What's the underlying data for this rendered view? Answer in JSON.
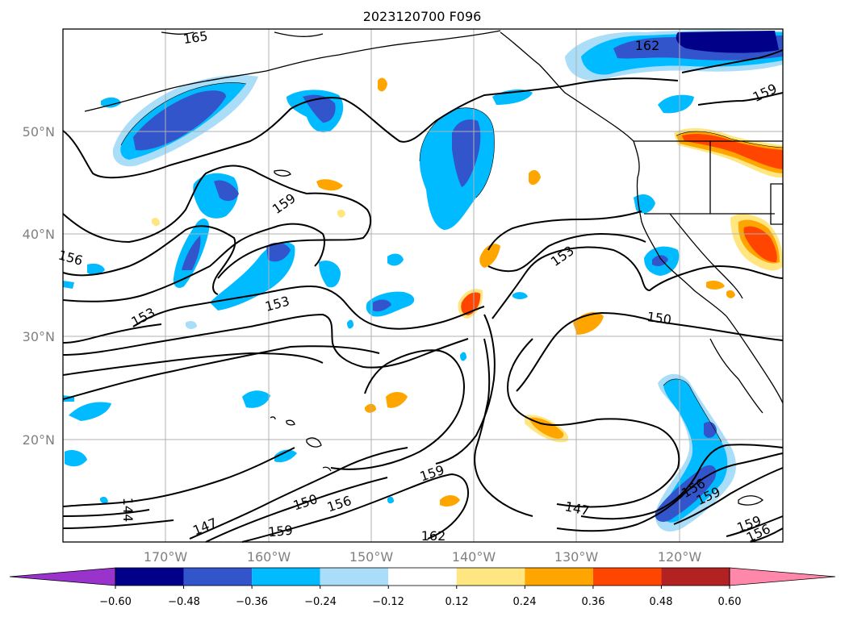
{
  "title": "2023120700 F096",
  "lat_labels": [
    "50°N",
    "40°N",
    "30°N",
    "20°N"
  ],
  "lon_labels": [
    "170°W",
    "160°W",
    "150°W",
    "140°W",
    "130°W",
    "120°W"
  ],
  "colorbar": {
    "ticks": [
      "−0.60",
      "−0.48",
      "−0.36",
      "−0.24",
      "−0.12",
      "0.12",
      "0.24",
      "0.36",
      "0.48",
      "0.60"
    ],
    "colors": [
      "#9933cc",
      "#000088",
      "#3355cc",
      "#00bbff",
      "#aaddf7",
      "#ffffff",
      "#ffe680",
      "#ffa500",
      "#ff4500",
      "#b22222",
      "#ff88aa"
    ]
  },
  "contour_labels": [
    "165",
    "162",
    "159",
    "159",
    "156",
    "153",
    "153",
    "153",
    "150",
    "144",
    "147",
    "150",
    "156",
    "159",
    "159",
    "162",
    "147",
    "156",
    "159",
    "159",
    "156"
  ],
  "colors": {
    "land_line": "#000000",
    "grid": "#b0b0b0",
    "contour": "#000000"
  }
}
